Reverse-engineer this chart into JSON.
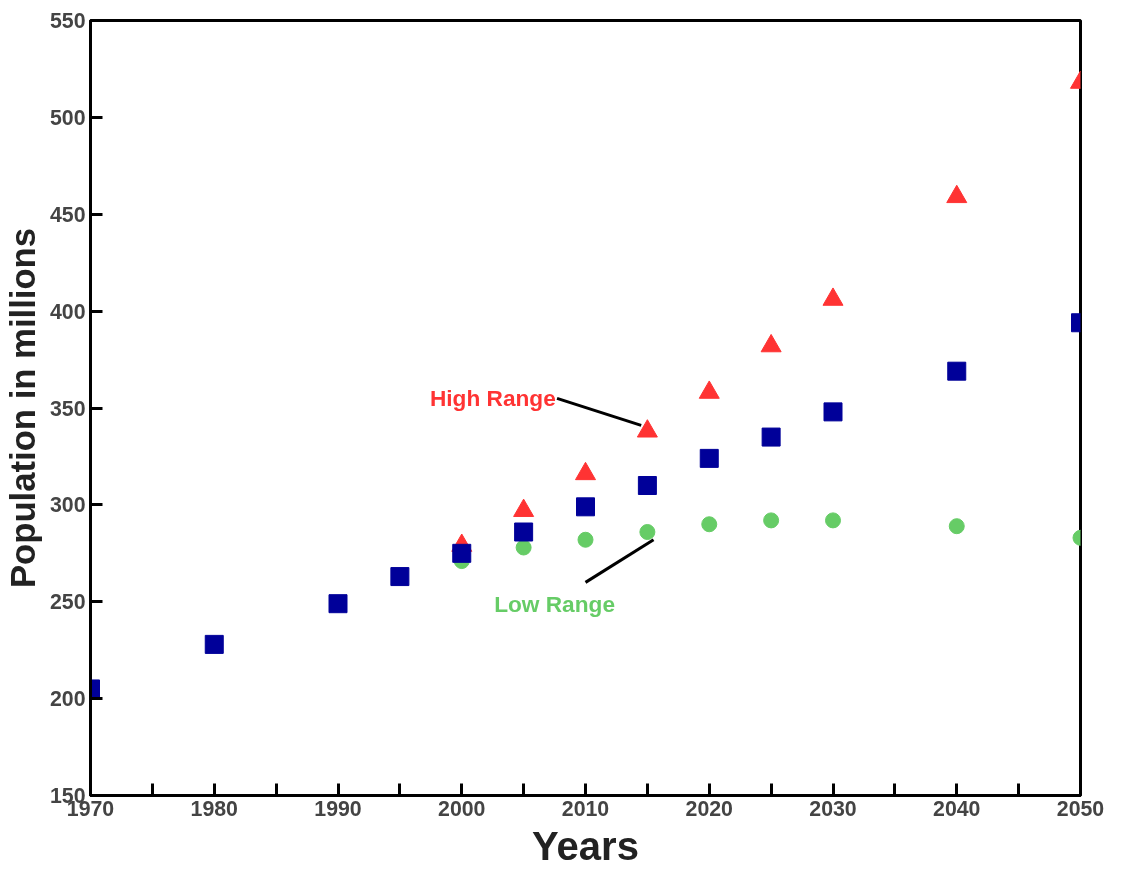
{
  "chart_data": {
    "type": "scatter",
    "xlabel": "Years",
    "ylabel": "Population in millions",
    "xlim": [
      1970,
      2050
    ],
    "ylim": [
      150,
      550
    ],
    "xticks": [
      1970,
      {
        "value": 1975,
        "label": null
      },
      1980,
      {
        "value": 1985,
        "label": null
      },
      1990,
      {
        "value": 1995,
        "label": null
      },
      2000,
      {
        "value": 2005,
        "label": null
      },
      2010,
      {
        "value": 2015,
        "label": null
      },
      2020,
      {
        "value": 2025,
        "label": null
      },
      2030,
      {
        "value": 2035,
        "label": null
      },
      2040,
      {
        "value": 2045,
        "label": null
      },
      2050
    ],
    "yticks": [
      150,
      200,
      250,
      300,
      350,
      400,
      450,
      500,
      550
    ],
    "grid": false,
    "series": [
      {
        "color": "#66cc66",
        "marker": "circle",
        "x": [
          2000,
          2005,
          2010,
          2015,
          2020,
          2025,
          2030,
          2040,
          2050
        ],
        "values": [
          271,
          278,
          282,
          286,
          290,
          292,
          292,
          289,
          283
        ]
      },
      {
        "color": "#ff3333",
        "marker": "triangle",
        "x": [
          2000,
          2005,
          2010,
          2015,
          2020,
          2025,
          2030,
          2040,
          2050
        ],
        "values": [
          279,
          297,
          316,
          338,
          358,
          382,
          406,
          459,
          518
        ]
      },
      {
        "color": "#000099",
        "marker": "square",
        "x": [
          1970,
          1980,
          1990,
          1995,
          2000,
          2005,
          2010,
          2015,
          2020,
          2025,
          2030,
          2040,
          2050
        ],
        "values": [
          205,
          228,
          249,
          263,
          275,
          286,
          299,
          310,
          324,
          335,
          348,
          369,
          394
        ]
      }
    ],
    "annotations": [
      {
        "text": "High Range",
        "x": 2015,
        "y": 338
      },
      {
        "text": "Low Range",
        "x": 2015,
        "y": 286
      }
    ]
  }
}
